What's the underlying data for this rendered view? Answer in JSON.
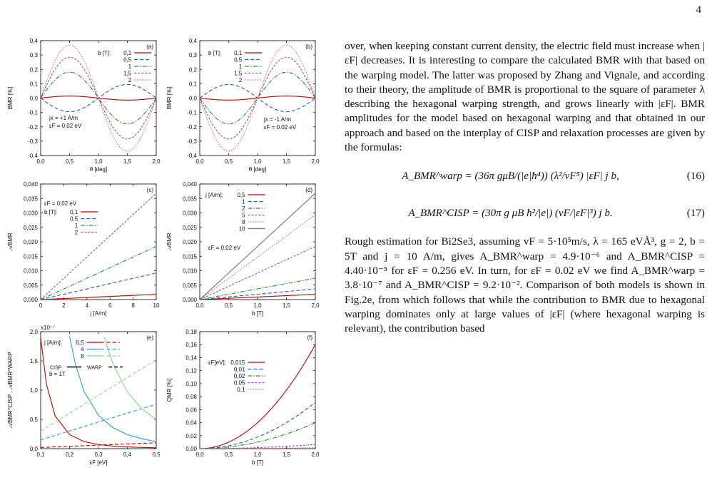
{
  "page_number": "4",
  "text": {
    "para1": "over, when keeping constant current density, the electric field must increase when |εF| decreases. It is interesting to compare the calculated BMR with that based on the warping model. The latter was proposed by Zhang and Vignale, and according to their theory, the amplitude of BMR is proportional to the square of parameter λ describing the hexagonal warping strength, and grows linearly with |εF|. BMR amplitudes for the model based on hexagonal warping and that obtained in our approach and based on the interplay of CISP and relaxation processes are given by the formulas:",
    "eq16": "A_BMR^warp = (36π gμB/(|e|ħ⁴)) (λ²/vF⁵) |εF| j b,",
    "eq16_num": "(16)",
    "eq17": "A_BMR^CISP = (30π g μB ħ²/|e|) (vF/|εF|³) j b.",
    "eq17_num": "(17)",
    "para2": "Rough estimation for Bi2Se3, assuming vF = 5·10⁵m/s, λ = 165 eVÅ³, g = 2, b = 5T and j = 10 A/m, gives A_BMR^warp = 4.9·10⁻⁶ and A_BMR^CISP = 4.40·10⁻⁵ for εF = 0.256 eV. In turn, for εF = 0.02 eV we find A_BMR^warp = 3.8·10⁻⁷ and A_BMR^CISP = 9.2·10⁻². Comparison of both models is shown in Fig.2e, from which follows that while the contribution to BMR due to hexagonal warping dominates only at large values of |εF| (where hexagonal warping is relevant), the contribution based"
  },
  "chart_data": [
    {
      "type": "line",
      "panel": "(a)",
      "xlabel": "θ [deg]",
      "ylabel": "BMR [%]",
      "xlim": [
        0,
        2
      ],
      "ylim": [
        -0.4,
        0.4
      ],
      "xticks": [
        0,
        0.5,
        1,
        1.5,
        2
      ],
      "yticks": [
        -0.4,
        -0.3,
        -0.2,
        -0.1,
        0,
        0.1,
        0.2,
        0.3,
        0.4
      ],
      "legend_title": "b [T]:",
      "annotations": [
        "jx = +1 A/m",
        "εF = 0,02 eV"
      ],
      "curve": "A*sin(pi*theta)",
      "series": [
        {
          "name": "0,1",
          "amplitude": 0.014,
          "color": "#c00000",
          "dash": "solid"
        },
        {
          "name": "0,5",
          "amplitude": -0.095,
          "color": "#1f5fc8",
          "dash": "dashed"
        },
        {
          "name": "1",
          "amplitude": 0.18,
          "color": "#2e8b3a",
          "dash": "dashdot"
        },
        {
          "name": "1,5",
          "amplitude": 0.285,
          "color": "#8a4fd6",
          "dash": "dashed2"
        },
        {
          "name": "2",
          "amplitude": 0.37,
          "color": "#f06060",
          "dash": "dotted"
        }
      ]
    },
    {
      "type": "line",
      "panel": "(b)",
      "xlabel": "θ [deg]",
      "ylabel": "BMR [%]",
      "xlim": [
        0,
        2
      ],
      "ylim": [
        -0.4,
        0.4
      ],
      "xticks": [
        0,
        0.5,
        1,
        1.5,
        2
      ],
      "yticks": [
        -0.4,
        -0.3,
        -0.2,
        -0.1,
        0,
        0.1,
        0.2,
        0.3,
        0.4
      ],
      "legend_title": "b [T]:",
      "annotations": [
        "jx = -1 A/m",
        "εF = 0,02 eV"
      ],
      "curve": "-A*sin(pi*theta)",
      "series": [
        {
          "name": "0,1",
          "amplitude": 0.014,
          "color": "#c00000",
          "dash": "solid"
        },
        {
          "name": "0,5",
          "amplitude": -0.095,
          "color": "#1f5fc8",
          "dash": "dashed"
        },
        {
          "name": "1",
          "amplitude": 0.18,
          "color": "#2e8b3a",
          "dash": "dashdot"
        },
        {
          "name": "1,5",
          "amplitude": 0.285,
          "color": "#8a4fd6",
          "dash": "dashed2"
        },
        {
          "name": "2",
          "amplitude": 0.37,
          "color": "#f06060",
          "dash": "dotted"
        }
      ]
    },
    {
      "type": "line",
      "panel": "(c)",
      "xlabel": "j  [A/m]",
      "ylabel": "𝒜BMR",
      "xlim": [
        0,
        10
      ],
      "ylim": [
        0,
        0.04
      ],
      "xticks": [
        0,
        2,
        4,
        6,
        8,
        10
      ],
      "yticks": [
        0,
        0.005,
        0.01,
        0.015,
        0.02,
        0.025,
        0.03,
        0.035,
        0.04
      ],
      "legend_title": "b [T]:",
      "annotations": [
        "εF = 0,02 eV"
      ],
      "series": [
        {
          "name": "0,1",
          "x": [
            0,
            10
          ],
          "y": [
            0,
            0.0018
          ],
          "color": "#c00000",
          "dash": "solid"
        },
        {
          "name": "0,5",
          "x": [
            0,
            10
          ],
          "y": [
            0,
            0.0092
          ],
          "color": "#1f5fc8",
          "dash": "dashed"
        },
        {
          "name": "1",
          "x": [
            0,
            10
          ],
          "y": [
            0,
            0.0184
          ],
          "color": "#2e8b3a",
          "dash": "dashdot"
        },
        {
          "name": "2",
          "x": [
            0,
            10
          ],
          "y": [
            0,
            0.0368
          ],
          "color": "#8a4fd6",
          "dash": "dashed2"
        }
      ]
    },
    {
      "type": "line",
      "panel": "(d)",
      "xlabel": "b [T]",
      "ylabel": "𝒜BMR",
      "xlim": [
        0,
        2
      ],
      "ylim": [
        0,
        0.04
      ],
      "xticks": [
        0,
        0.5,
        1,
        1.5,
        2
      ],
      "yticks": [
        0,
        0.005,
        0.01,
        0.015,
        0.02,
        0.025,
        0.03,
        0.035,
        0.04
      ],
      "legend_title": "j [A/m]:",
      "annotations": [
        "εF = 0,02 eV"
      ],
      "series": [
        {
          "name": "0,5",
          "x": [
            0,
            2
          ],
          "y": [
            0,
            0.0018
          ],
          "color": "#c00000",
          "dash": "solid"
        },
        {
          "name": "1",
          "x": [
            0,
            2
          ],
          "y": [
            0,
            0.0037
          ],
          "color": "#1f5fc8",
          "dash": "dashed"
        },
        {
          "name": "2",
          "x": [
            0,
            2
          ],
          "y": [
            0,
            0.0074
          ],
          "color": "#2e8b3a",
          "dash": "dashdot"
        },
        {
          "name": "5",
          "x": [
            0,
            2
          ],
          "y": [
            0,
            0.0184
          ],
          "color": "#8a4fd6",
          "dash": "dashed2"
        },
        {
          "name": "8",
          "x": [
            0,
            2
          ],
          "y": [
            0,
            0.0294
          ],
          "color": "#f06060",
          "dash": "dotted"
        },
        {
          "name": "10",
          "x": [
            0,
            2
          ],
          "y": [
            0,
            0.0368
          ],
          "color": "#777777",
          "dash": "solid"
        }
      ]
    },
    {
      "type": "line",
      "panel": "(e)",
      "xlabel": "εF [eV]",
      "ylabel": "𝒜BMR^CISP , 𝒜BMR^WARP",
      "scale_label": "x10⁻⁷",
      "xlim": [
        0.1,
        0.5
      ],
      "ylim": [
        0,
        2
      ],
      "xticks": [
        0.1,
        0.2,
        0.3,
        0.4,
        0.5
      ],
      "yticks": [
        0,
        0.5,
        1,
        1.5,
        2
      ],
      "legend_title": "j [A/m]:",
      "legend_style": [
        "CISP",
        "WARP"
      ],
      "annotations": [
        "b = 1T"
      ],
      "series": [
        {
          "name": "0,5",
          "kind": "CISP",
          "x": [
            0.1,
            0.12,
            0.15,
            0.2,
            0.25,
            0.3,
            0.35,
            0.4,
            0.45,
            0.5
          ],
          "y": [
            1.9,
            1.1,
            0.56,
            0.24,
            0.12,
            0.07,
            0.044,
            0.03,
            0.021,
            0.015
          ],
          "color": "#c00000"
        },
        {
          "name": "0,5",
          "kind": "WARP",
          "x": [
            0.1,
            0.5
          ],
          "y": [
            0.02,
            0.1
          ],
          "color": "#c00000"
        },
        {
          "name": "4",
          "kind": "CISP",
          "x": [
            0.2,
            0.22,
            0.25,
            0.3,
            0.35,
            0.4,
            0.45,
            0.5
          ],
          "y": [
            1.92,
            1.45,
            0.98,
            0.57,
            0.36,
            0.24,
            0.17,
            0.12
          ],
          "color": "#2c9fd0"
        },
        {
          "name": "4",
          "kind": "WARP",
          "x": [
            0.1,
            0.5
          ],
          "y": [
            0.15,
            0.76
          ],
          "color": "#2c9fd0"
        },
        {
          "name": "8",
          "kind": "CISP",
          "x": [
            0.32,
            0.35,
            0.4,
            0.45,
            0.5
          ],
          "y": [
            1.9,
            1.45,
            0.97,
            0.68,
            0.5
          ],
          "color": "#8fd48f"
        },
        {
          "name": "8",
          "kind": "WARP",
          "x": [
            0.1,
            0.5
          ],
          "y": [
            0.3,
            1.52
          ],
          "color": "#8fd48f"
        }
      ]
    },
    {
      "type": "line",
      "panel": "(f)",
      "xlabel": "b [T]",
      "ylabel": "QMR [%]",
      "xlim": [
        0,
        2
      ],
      "ylim": [
        0,
        0.18
      ],
      "xticks": [
        0,
        0.5,
        1,
        1.5,
        2
      ],
      "yticks": [
        0,
        0.02,
        0.04,
        0.06,
        0.08,
        0.1,
        0.12,
        0.14,
        0.16,
        0.18
      ],
      "legend_title": "εF[eV]:",
      "curve": "c*b^2",
      "series": [
        {
          "name": "0,015",
          "coef": 0.04,
          "color": "#c00000",
          "dash": "solid"
        },
        {
          "name": "0,01",
          "coef": 0.0178,
          "color": "#1f5fc8",
          "dash": "dashed"
        },
        {
          "name": "0,02",
          "coef": 0.01,
          "color": "#2e8b3a",
          "dash": "dashdot"
        },
        {
          "name": "0,05",
          "coef": 0.0016,
          "color": "#8a4fd6",
          "dash": "dashed2"
        },
        {
          "name": "0,1",
          "coef": 0.0004,
          "color": "#f06060",
          "dash": "dotted"
        }
      ]
    }
  ]
}
